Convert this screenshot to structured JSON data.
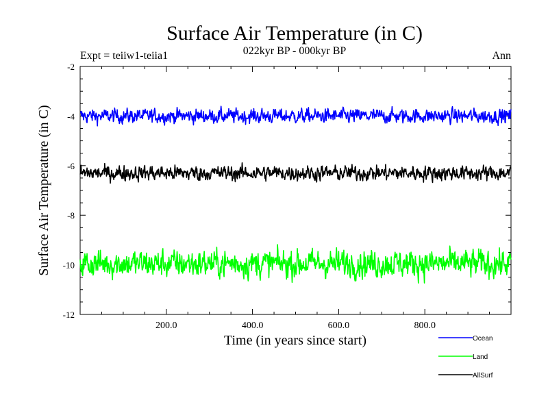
{
  "chart_data": {
    "type": "line",
    "title": "Surface Air Temperature (in C)",
    "subtitle": "022kyr BP - 000kyr BP",
    "experiment_label": "Expt = teiiw1-teiia1",
    "season_label": "Ann",
    "xlabel": "Time (in years since start)",
    "ylabel": "Surface Air Temperature (in C)",
    "xlim": [
      0,
      1000
    ],
    "ylim": [
      -12,
      -2
    ],
    "x_ticks": [
      200,
      400,
      600,
      800
    ],
    "x_tick_labels": [
      "200.0",
      "400.0",
      "600.0",
      "800.0"
    ],
    "y_ticks": [
      -2,
      -4,
      -6,
      -8,
      -10,
      -12
    ],
    "y_tick_labels": [
      "-2",
      "-4",
      "-6",
      "-8",
      "-10",
      "-12"
    ],
    "grid": false,
    "legend_position": "bottom-right",
    "series": [
      {
        "name": "Ocean",
        "color": "#0000ff",
        "mean": -4.0,
        "approx_range": [
          -4.45,
          -3.6
        ]
      },
      {
        "name": "Land",
        "color": "#00ff00",
        "mean": -9.95,
        "approx_range": [
          -10.8,
          -9.15
        ]
      },
      {
        "name": "AllSurf",
        "color": "#000000",
        "mean": -6.3,
        "approx_range": [
          -6.75,
          -5.85
        ]
      }
    ]
  }
}
